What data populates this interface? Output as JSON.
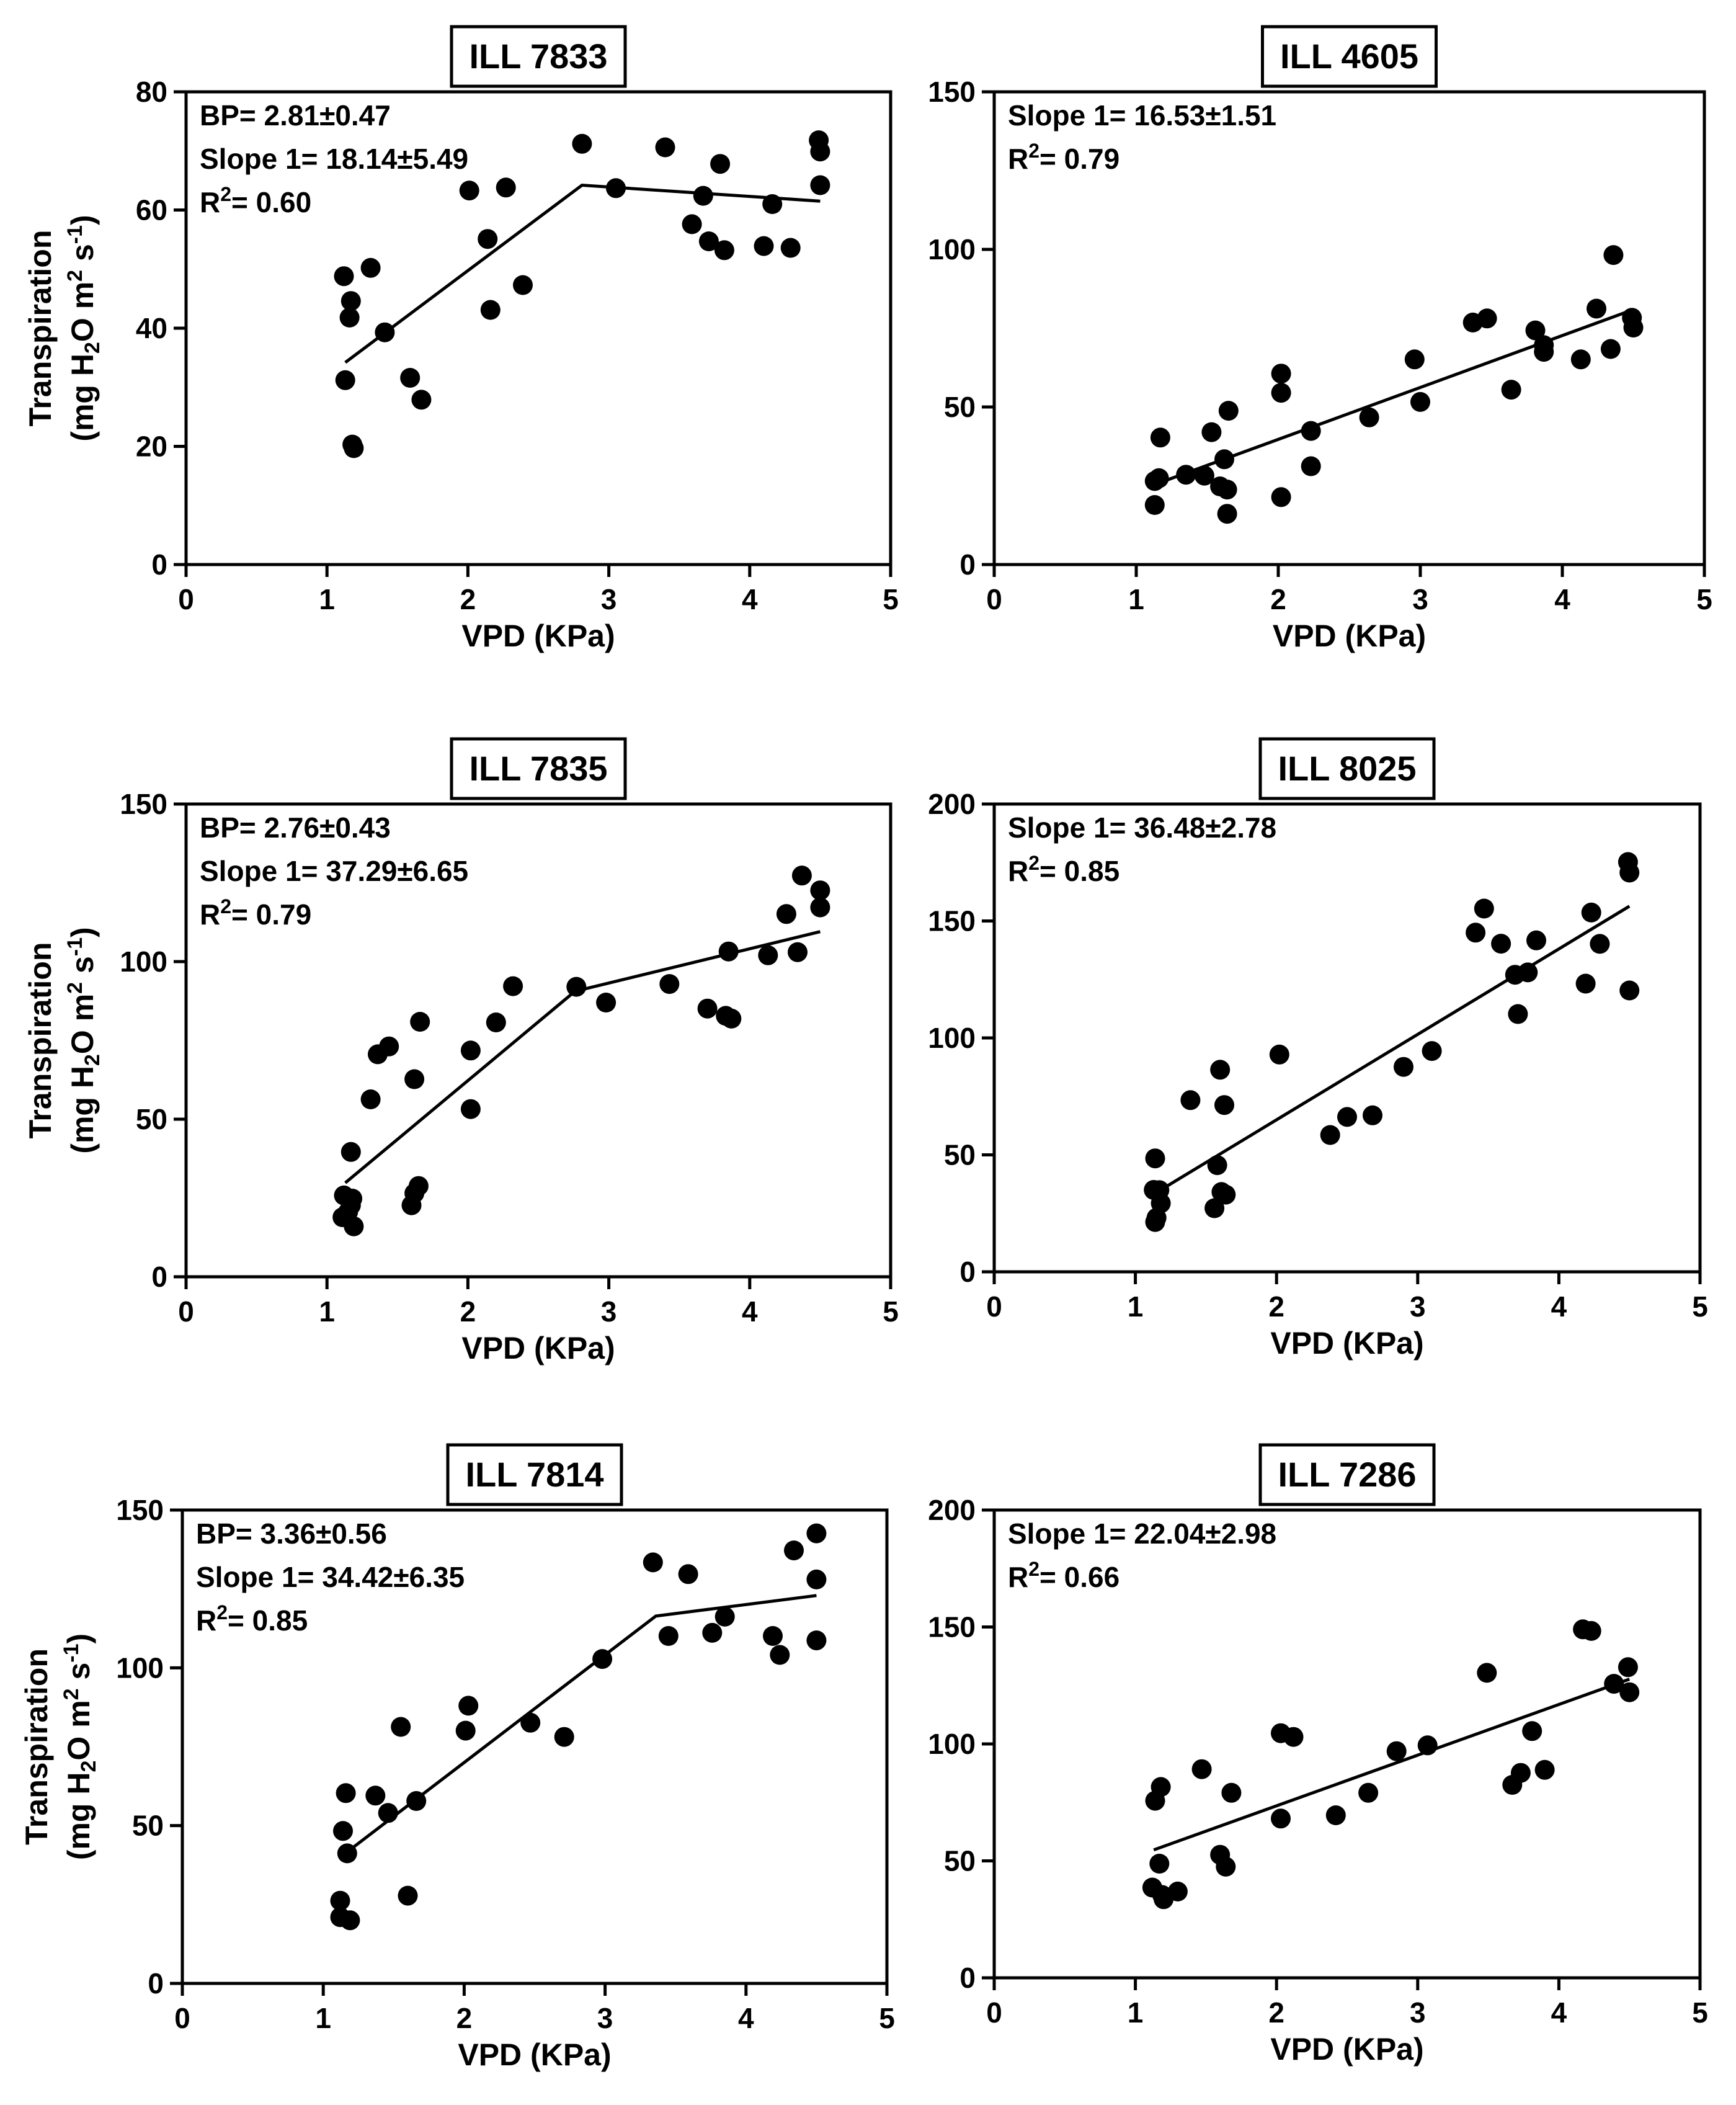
{
  "chart_data": [
    {
      "type": "scatter",
      "title": "ILL 7833",
      "xlabel": "VPD (KPa)",
      "ylabel_line1": "Transpiration",
      "ylabel_line2": [
        "(mg H",
        "2",
        "O m",
        "2",
        " s",
        "-1",
        ")"
      ],
      "xlim": [
        0,
        5
      ],
      "ylim": [
        0,
        80
      ],
      "xticks": [
        0,
        1,
        2,
        3,
        4,
        5
      ],
      "yticks": [
        0,
        20,
        40,
        60,
        80
      ],
      "annotations": [
        "BP= 2.81±0.47",
        "Slope 1= 18.14±5.49",
        "R2= 0.60"
      ],
      "fit_line": [
        [
          1.13,
          34.2
        ],
        [
          2.81,
          64.2
        ],
        [
          4.5,
          61.5
        ]
      ],
      "points": [
        [
          1.12,
          48.8
        ],
        [
          1.13,
          31.2
        ],
        [
          1.16,
          41.8
        ],
        [
          1.17,
          44.6
        ],
        [
          1.18,
          20.3
        ],
        [
          1.19,
          19.7
        ],
        [
          1.31,
          50.2
        ],
        [
          1.41,
          39.3
        ],
        [
          1.59,
          31.6
        ],
        [
          1.67,
          27.9
        ],
        [
          2.01,
          63.3
        ],
        [
          2.14,
          55.1
        ],
        [
          2.16,
          43.1
        ],
        [
          2.27,
          63.8
        ],
        [
          2.39,
          47.3
        ],
        [
          2.81,
          71.2
        ],
        [
          3.05,
          63.7
        ],
        [
          3.4,
          70.6
        ],
        [
          3.59,
          57.6
        ],
        [
          3.67,
          62.4
        ],
        [
          3.71,
          54.7
        ],
        [
          3.79,
          67.8
        ],
        [
          3.82,
          53.2
        ],
        [
          4.1,
          53.9
        ],
        [
          4.16,
          61.0
        ],
        [
          4.29,
          53.6
        ],
        [
          4.49,
          71.8
        ],
        [
          4.5,
          69.9
        ],
        [
          4.5,
          64.2
        ]
      ]
    },
    {
      "type": "scatter",
      "title": "ILL 4605",
      "xlabel": "VPD (KPa)",
      "ylabel_line1": "",
      "ylabel_line2": [],
      "xlim": [
        0,
        5
      ],
      "ylim": [
        0,
        150
      ],
      "xticks": [
        0,
        1,
        2,
        3,
        4,
        5
      ],
      "yticks": [
        0,
        50,
        100,
        150
      ],
      "annotations": [
        "Slope 1= 16.53±1.51",
        "R2= 0.79"
      ],
      "fit_line": [
        [
          1.13,
          25.4
        ],
        [
          4.5,
          80.9
        ]
      ],
      "points": [
        [
          1.13,
          18.9
        ],
        [
          1.13,
          26.5
        ],
        [
          1.16,
          27.4
        ],
        [
          1.17,
          40.3
        ],
        [
          1.35,
          28.5
        ],
        [
          1.48,
          28.2
        ],
        [
          1.53,
          42.0
        ],
        [
          1.59,
          24.8
        ],
        [
          1.62,
          33.4
        ],
        [
          1.64,
          23.8
        ],
        [
          1.64,
          16.1
        ],
        [
          1.65,
          48.8
        ],
        [
          2.02,
          60.6
        ],
        [
          2.02,
          54.5
        ],
        [
          2.02,
          21.4
        ],
        [
          2.23,
          31.2
        ],
        [
          2.23,
          42.4
        ],
        [
          2.64,
          46.7
        ],
        [
          2.96,
          65.1
        ],
        [
          3.0,
          51.6
        ],
        [
          3.37,
          76.8
        ],
        [
          3.47,
          78.1
        ],
        [
          3.64,
          55.5
        ],
        [
          3.81,
          74.3
        ],
        [
          3.87,
          67.5
        ],
        [
          3.87,
          69.6
        ],
        [
          4.13,
          65.1
        ],
        [
          4.24,
          81.2
        ],
        [
          4.34,
          68.4
        ],
        [
          4.36,
          98.2
        ],
        [
          4.49,
          78.3
        ],
        [
          4.5,
          75.2
        ]
      ]
    },
    {
      "type": "scatter",
      "title": "ILL 7835",
      "xlabel": "VPD (KPa)",
      "ylabel_line1": "Transpiration",
      "ylabel_line2": [
        "(mg H",
        "2",
        "O m",
        "2",
        " s",
        "-1",
        ")"
      ],
      "xlim": [
        0,
        5
      ],
      "ylim": [
        0,
        150
      ],
      "xticks": [
        0,
        1,
        2,
        3,
        4,
        5
      ],
      "yticks": [
        0,
        50,
        100,
        150
      ],
      "annotations": [
        "BP= 2.76±0.43",
        "Slope 1= 37.29±6.65",
        "R2= 0.79"
      ],
      "fit_line": [
        [
          1.13,
          29.8
        ],
        [
          2.76,
          90.6
        ],
        [
          4.5,
          109.5
        ]
      ],
      "points": [
        [
          1.11,
          18.9
        ],
        [
          1.12,
          25.8
        ],
        [
          1.15,
          20.6
        ],
        [
          1.17,
          22.7
        ],
        [
          1.17,
          39.6
        ],
        [
          1.18,
          24.8
        ],
        [
          1.19,
          16.0
        ],
        [
          1.31,
          56.3
        ],
        [
          1.36,
          70.6
        ],
        [
          1.44,
          73.1
        ],
        [
          1.6,
          22.7
        ],
        [
          1.62,
          62.7
        ],
        [
          1.62,
          26.5
        ],
        [
          1.65,
          28.8
        ],
        [
          1.66,
          80.9
        ],
        [
          2.02,
          71.8
        ],
        [
          2.02,
          53.2
        ],
        [
          2.2,
          80.7
        ],
        [
          2.32,
          92.2
        ],
        [
          2.77,
          92.0
        ],
        [
          2.98,
          87.0
        ],
        [
          3.43,
          92.9
        ],
        [
          3.7,
          85.1
        ],
        [
          3.83,
          82.8
        ],
        [
          3.85,
          103.2
        ],
        [
          3.87,
          81.9
        ],
        [
          4.13,
          102.0
        ],
        [
          4.26,
          115.1
        ],
        [
          4.34,
          103.0
        ],
        [
          4.37,
          127.3
        ],
        [
          4.5,
          122.6
        ],
        [
          4.5,
          117.2
        ]
      ]
    },
    {
      "type": "scatter",
      "title": "ILL 8025",
      "xlabel": "VPD (KPa)",
      "ylabel_line1": "",
      "ylabel_line2": [],
      "xlim": [
        0,
        5
      ],
      "ylim": [
        0,
        200
      ],
      "xticks": [
        0,
        1,
        2,
        3,
        4,
        5
      ],
      "yticks": [
        0,
        50,
        100,
        150,
        200
      ],
      "annotations": [
        "Slope 1= 36.48±2.78",
        "R2= 0.85"
      ],
      "fit_line": [
        [
          1.13,
          33.2
        ],
        [
          4.5,
          156.3
        ]
      ],
      "points": [
        [
          1.13,
          35.0
        ],
        [
          1.14,
          48.5
        ],
        [
          1.14,
          21.3
        ],
        [
          1.15,
          23.1
        ],
        [
          1.17,
          34.9
        ],
        [
          1.18,
          29.3
        ],
        [
          1.39,
          73.4
        ],
        [
          1.56,
          27.2
        ],
        [
          1.58,
          45.6
        ],
        [
          1.6,
          86.4
        ],
        [
          1.61,
          34.1
        ],
        [
          1.63,
          71.3
        ],
        [
          1.64,
          33.0
        ],
        [
          2.02,
          92.9
        ],
        [
          2.38,
          58.5
        ],
        [
          2.5,
          66.2
        ],
        [
          2.68,
          66.9
        ],
        [
          2.9,
          87.6
        ],
        [
          3.1,
          94.4
        ],
        [
          3.41,
          145.0
        ],
        [
          3.47,
          155.3
        ],
        [
          3.59,
          140.3
        ],
        [
          3.69,
          127.0
        ],
        [
          3.71,
          110.2
        ],
        [
          3.78,
          128.0
        ],
        [
          3.84,
          141.7
        ],
        [
          4.19,
          123.2
        ],
        [
          4.23,
          153.6
        ],
        [
          4.29,
          140.2
        ],
        [
          4.49,
          175.2
        ],
        [
          4.5,
          170.7
        ],
        [
          4.5,
          120.3
        ]
      ]
    },
    {
      "type": "scatter",
      "title": "ILL 7814",
      "xlabel": "VPD (KPa)",
      "ylabel_line1": "Transpiration",
      "ylabel_line2": [
        "(mg H",
        "2",
        "O m",
        "2",
        " s",
        "-1",
        ")"
      ],
      "xlim": [
        0,
        5
      ],
      "ylim": [
        0,
        150
      ],
      "xticks": [
        0,
        1,
        2,
        3,
        4,
        5
      ],
      "yticks": [
        0,
        50,
        100,
        150
      ],
      "annotations": [
        "BP= 3.36±0.56",
        "Slope 1= 34.42±6.35",
        "R2= 0.85"
      ],
      "fit_line": [
        [
          1.13,
          40.3
        ],
        [
          3.36,
          116.4
        ],
        [
          4.5,
          122.9
        ]
      ],
      "points": [
        [
          1.12,
          26.2
        ],
        [
          1.12,
          21.0
        ],
        [
          1.14,
          48.3
        ],
        [
          1.16,
          60.3
        ],
        [
          1.17,
          41.2
        ],
        [
          1.19,
          20.0
        ],
        [
          1.37,
          59.5
        ],
        [
          1.46,
          54.0
        ],
        [
          1.55,
          81.3
        ],
        [
          1.6,
          27.8
        ],
        [
          1.66,
          57.8
        ],
        [
          2.01,
          80.1
        ],
        [
          2.03,
          88.0
        ],
        [
          2.47,
          82.6
        ],
        [
          2.71,
          78.1
        ],
        [
          2.98,
          102.8
        ],
        [
          3.34,
          133.4
        ],
        [
          3.45,
          110.1
        ],
        [
          3.59,
          129.7
        ],
        [
          3.76,
          111.1
        ],
        [
          3.85,
          116.2
        ],
        [
          4.19,
          110.1
        ],
        [
          4.24,
          104.1
        ],
        [
          4.34,
          137.2
        ],
        [
          4.5,
          142.6
        ],
        [
          4.5,
          128.0
        ],
        [
          4.5,
          108.7
        ]
      ]
    },
    {
      "type": "scatter",
      "title": "ILL 7286",
      "xlabel": "VPD (KPa)",
      "ylabel_line1": "",
      "ylabel_line2": [],
      "xlim": [
        0,
        5
      ],
      "ylim": [
        0,
        200
      ],
      "xticks": [
        0,
        1,
        2,
        3,
        4,
        5
      ],
      "yticks": [
        0,
        50,
        100,
        150,
        200
      ],
      "annotations": [
        "Slope 1= 22.04±2.98",
        "R2= 0.66"
      ],
      "fit_line": [
        [
          1.13,
          54.7
        ],
        [
          4.5,
          127.7
        ]
      ],
      "points": [
        [
          1.12,
          38.6
        ],
        [
          1.14,
          75.7
        ],
        [
          1.17,
          48.8
        ],
        [
          1.18,
          81.6
        ],
        [
          1.19,
          35.4
        ],
        [
          1.2,
          33.6
        ],
        [
          1.3,
          36.9
        ],
        [
          1.47,
          89.2
        ],
        [
          1.6,
          52.6
        ],
        [
          1.64,
          47.5
        ],
        [
          1.68,
          79.1
        ],
        [
          2.03,
          68.1
        ],
        [
          2.03,
          104.6
        ],
        [
          2.12,
          103.0
        ],
        [
          2.42,
          69.5
        ],
        [
          2.65,
          79.1
        ],
        [
          2.85,
          96.9
        ],
        [
          3.07,
          99.4
        ],
        [
          3.49,
          130.4
        ],
        [
          3.67,
          82.5
        ],
        [
          3.73,
          87.6
        ],
        [
          3.81,
          105.5
        ],
        [
          3.9,
          88.9
        ],
        [
          4.17,
          149.0
        ],
        [
          4.23,
          148.3
        ],
        [
          4.39,
          125.7
        ],
        [
          4.49,
          132.8
        ],
        [
          4.5,
          122.1
        ]
      ]
    }
  ]
}
